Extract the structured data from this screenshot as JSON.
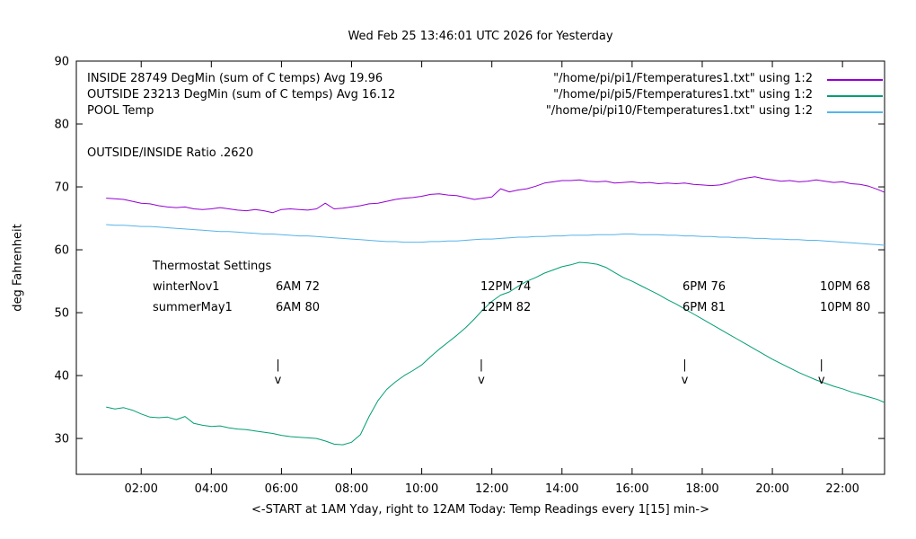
{
  "title": "Wed Feb 25 13:46:01 UTC 2026 for Yesterday",
  "ratio_text": "OUTSIDE/INSIDE Ratio .2620",
  "thermostat": {
    "heading": "Thermostat Settings",
    "rows": [
      {
        "name": "winterNov1",
        "settings": [
          "6AM 72",
          "12PM 74",
          "6PM 76",
          "10PM 68"
        ]
      },
      {
        "name": "summerMay1",
        "settings": [
          "6AM 80",
          "12PM 82",
          "6PM 81",
          "10PM 80"
        ]
      }
    ]
  },
  "chart_data": {
    "type": "line",
    "title": "Wed Feb 25 13:46:01 UTC 2026 for Yesterday",
    "xlabel": "<-START at 1AM Yday, right to 12AM Today:  Temp Readings every 1[15] min->",
    "ylabel": "deg Fahrenheit",
    "xlim": [
      0.15,
      23.2
    ],
    "ylim": [
      24.3,
      90
    ],
    "grid": false,
    "legend_position": "top-left inside, file names right-aligned with line samples at top-right",
    "xticks": [
      {
        "h": 2,
        "label": "02:00"
      },
      {
        "h": 4,
        "label": "04:00"
      },
      {
        "h": 6,
        "label": "06:00"
      },
      {
        "h": 8,
        "label": "08:00"
      },
      {
        "h": 10,
        "label": "10:00"
      },
      {
        "h": 12,
        "label": "12:00"
      },
      {
        "h": 14,
        "label": "14:00"
      },
      {
        "h": 16,
        "label": "16:00"
      },
      {
        "h": 18,
        "label": "18:00"
      },
      {
        "h": 20,
        "label": "20:00"
      },
      {
        "h": 22,
        "label": "22:00"
      }
    ],
    "yticks": [
      30,
      40,
      50,
      60,
      70,
      80,
      90
    ],
    "x_start": 1.0,
    "x_step": 0.25,
    "series": [
      {
        "name": "INSIDE",
        "legend_label": "INSIDE 28749 DegMin (sum of C temps) Avg 19.96",
        "file_label": "\"/home/pi/pi1/Ftemperatures1.txt\" using 1:2",
        "color": "#9400d3",
        "values": [
          68.2,
          68.1,
          68.0,
          67.7,
          67.4,
          67.3,
          67.0,
          66.8,
          66.7,
          66.8,
          66.5,
          66.4,
          66.5,
          66.7,
          66.5,
          66.3,
          66.2,
          66.4,
          66.2,
          65.9,
          66.4,
          66.5,
          66.4,
          66.3,
          66.5,
          67.4,
          66.5,
          66.6,
          66.8,
          67.0,
          67.3,
          67.4,
          67.7,
          68.0,
          68.2,
          68.3,
          68.5,
          68.8,
          68.9,
          68.7,
          68.6,
          68.3,
          68.0,
          68.2,
          68.4,
          69.7,
          69.2,
          69.5,
          69.7,
          70.1,
          70.6,
          70.8,
          71.0,
          71.0,
          71.1,
          70.9,
          70.8,
          70.9,
          70.6,
          70.7,
          70.8,
          70.6,
          70.7,
          70.5,
          70.6,
          70.5,
          70.6,
          70.4,
          70.3,
          70.2,
          70.3,
          70.6,
          71.1,
          71.4,
          71.6,
          71.3,
          71.1,
          70.9,
          71.0,
          70.8,
          70.9,
          71.1,
          70.9,
          70.7,
          70.8,
          70.5,
          70.4,
          70.1,
          69.6,
          69.0
        ]
      },
      {
        "name": "OUTSIDE",
        "legend_label": "OUTSIDE 23213 DegMin (sum of C temps) Avg 16.12",
        "file_label": "\"/home/pi/pi5/Ftemperatures1.txt\" using 1:2",
        "color": "#009e73",
        "values": [
          35.0,
          34.7,
          34.9,
          34.5,
          33.9,
          33.4,
          33.3,
          33.4,
          33.0,
          33.5,
          32.4,
          32.1,
          31.9,
          32.0,
          31.7,
          31.5,
          31.4,
          31.2,
          31.0,
          30.8,
          30.5,
          30.3,
          30.2,
          30.1,
          30.0,
          29.6,
          29.1,
          29.0,
          29.4,
          30.6,
          33.5,
          36.0,
          37.8,
          39.0,
          40.0,
          40.8,
          41.7,
          43.0,
          44.2,
          45.3,
          46.4,
          47.6,
          49.0,
          50.5,
          51.8,
          52.8,
          53.3,
          54.2,
          55.0,
          55.6,
          56.3,
          56.8,
          57.3,
          57.6,
          58.0,
          57.9,
          57.7,
          57.2,
          56.4,
          55.6,
          55.0,
          54.3,
          53.6,
          52.9,
          52.1,
          51.4,
          50.6,
          49.8,
          49.0,
          48.2,
          47.4,
          46.6,
          45.8,
          45.0,
          44.2,
          43.4,
          42.6,
          41.9,
          41.2,
          40.5,
          39.9,
          39.3,
          38.8,
          38.3,
          37.9,
          37.4,
          37.0,
          36.6,
          36.2,
          35.6
        ]
      },
      {
        "name": "POOL",
        "legend_label": "POOL Temp",
        "file_label": "\"/home/pi/pi10/Ftemperatures1.txt\" using 1:2",
        "color": "#56b4e9",
        "values": [
          64.0,
          63.9,
          63.9,
          63.8,
          63.7,
          63.7,
          63.6,
          63.5,
          63.4,
          63.3,
          63.2,
          63.1,
          63.0,
          62.9,
          62.9,
          62.8,
          62.7,
          62.6,
          62.5,
          62.5,
          62.4,
          62.3,
          62.2,
          62.2,
          62.1,
          62.0,
          61.9,
          61.8,
          61.7,
          61.6,
          61.5,
          61.4,
          61.3,
          61.3,
          61.2,
          61.2,
          61.2,
          61.3,
          61.3,
          61.4,
          61.4,
          61.5,
          61.6,
          61.7,
          61.7,
          61.8,
          61.9,
          62.0,
          62.0,
          62.1,
          62.1,
          62.2,
          62.2,
          62.3,
          62.3,
          62.3,
          62.4,
          62.4,
          62.4,
          62.5,
          62.5,
          62.4,
          62.4,
          62.4,
          62.3,
          62.3,
          62.2,
          62.2,
          62.1,
          62.1,
          62.0,
          62.0,
          61.9,
          61.9,
          61.8,
          61.8,
          61.7,
          61.7,
          61.6,
          61.6,
          61.5,
          61.5,
          61.4,
          61.3,
          61.2,
          61.1,
          61.0,
          60.9,
          60.8,
          60.7
        ]
      }
    ],
    "markers": {
      "hours": [
        5.9,
        11.7,
        17.5,
        21.4
      ],
      "top_glyph": "|",
      "bottom_glyph": "v"
    }
  }
}
